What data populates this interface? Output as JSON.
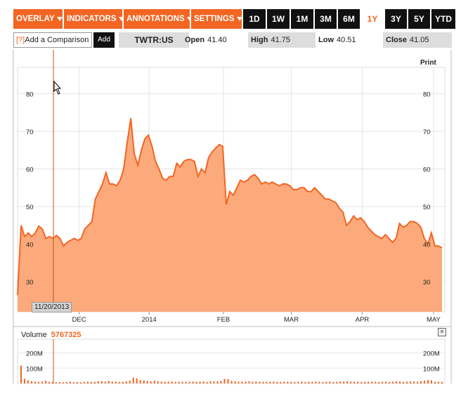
{
  "toolbar": {
    "menus": [
      "OVERLAY",
      "INDICATORS",
      "ANNOTATIONS",
      "SETTINGS"
    ],
    "ranges": [
      "1D",
      "1W",
      "1M",
      "3M",
      "6M",
      "1Y",
      "3Y",
      "5Y",
      "YTD"
    ],
    "active_range": "1Y"
  },
  "comparison": {
    "help_mark": "[?]",
    "label": "Add a Comparison",
    "add_label": "Add"
  },
  "quote": {
    "ticker": "TWTR:US",
    "open_label": "Open",
    "open": "41.40",
    "high_label": "High",
    "high": "41.75",
    "low_label": "Low",
    "low": "40.51",
    "close_label": "Close",
    "close": "41.05"
  },
  "print_label": "Print",
  "cursor_date": "11/20/2013",
  "volume": {
    "label": "Volume",
    "value": "5767325",
    "close_mark": "×"
  },
  "colors": {
    "accent": "#f26522",
    "fill": "#fcaa7b",
    "line": "#f26522"
  },
  "chart_data": [
    {
      "type": "area",
      "title": "",
      "ylim": [
        22,
        87
      ],
      "y_ticks": [
        30,
        40,
        50,
        60,
        70,
        80
      ],
      "x_tick_labels": [
        "DEC",
        "2014",
        "FEB",
        "MAR",
        "APR",
        "MAY"
      ],
      "grid": true,
      "series": [
        {
          "values": [
            26.5,
            45.0,
            42.0,
            43.0,
            42.0,
            43.0,
            44.8,
            44.0,
            41.5,
            42.0,
            41.5,
            42.3,
            41.5,
            39.5,
            40.5,
            41.0,
            41.5,
            41.0,
            41.5,
            44.0,
            45.0,
            46.0,
            52.0,
            54.0,
            56.0,
            59.0,
            56.0,
            56.0,
            55.5,
            57.0,
            60.0,
            67.0,
            73.5,
            64.0,
            61.0,
            65.0,
            68.0,
            69.0,
            66.0,
            62.0,
            60.0,
            57.5,
            57.0,
            58.0,
            58.0,
            61.5,
            60.5,
            62.0,
            62.5,
            62.5,
            62.0,
            58.0,
            60.0,
            59.0,
            63.0,
            64.5,
            65.5,
            66.5,
            66.0,
            50.5,
            54.0,
            53.0,
            55.0,
            57.0,
            56.5,
            57.0,
            58.0,
            58.5,
            57.5,
            56.0,
            56.5,
            56.0,
            56.5,
            56.0,
            55.5,
            56.0,
            56.0,
            55.5,
            54.5,
            54.5,
            55.0,
            55.0,
            54.0,
            54.0,
            55.0,
            54.0,
            53.0,
            52.0,
            52.0,
            51.5,
            51.0,
            49.5,
            48.5,
            45.0,
            46.0,
            47.5,
            46.5,
            47.0,
            46.0,
            44.5,
            43.5,
            42.5,
            42.0,
            41.5,
            42.5,
            41.5,
            40.5,
            41.5,
            45.5,
            44.5,
            45.0,
            46.0,
            46.0,
            45.5,
            44.5,
            41.5,
            40.0,
            43.0,
            39.5,
            39.5,
            39.0
          ]
        }
      ]
    },
    {
      "type": "bar",
      "title": "Volume",
      "ylim": [
        0,
        290
      ],
      "y_ticks": [
        "100M",
        "200M"
      ],
      "y_tick_values": [
        100,
        200
      ],
      "series": [
        {
          "name": "Volume",
          "values": [
            117,
            30,
            20,
            14,
            12,
            10,
            12,
            18,
            10,
            9,
            8,
            9,
            8,
            10,
            11,
            8,
            9,
            8,
            10,
            12,
            10,
            11,
            15,
            14,
            12,
            16,
            12,
            13,
            10,
            11,
            14,
            18,
            38,
            34,
            22,
            20,
            16,
            14,
            18,
            14,
            12,
            11,
            12,
            13,
            10,
            12,
            11,
            11,
            12,
            12,
            11,
            12,
            13,
            10,
            14,
            13,
            14,
            16,
            30,
            28,
            16,
            14,
            12,
            12,
            12,
            14,
            12,
            13,
            11,
            11,
            12,
            11,
            12,
            11,
            10,
            11,
            12,
            11,
            10,
            11,
            12,
            10,
            11,
            10,
            12,
            11,
            10,
            11,
            12,
            10,
            11,
            12,
            13,
            14,
            12,
            11,
            12,
            10,
            11,
            12,
            12,
            11,
            10,
            12,
            11,
            10,
            12,
            14,
            13,
            11,
            12,
            13,
            12,
            11,
            14,
            18,
            22,
            20,
            12,
            11,
            10
          ]
        }
      ]
    }
  ]
}
